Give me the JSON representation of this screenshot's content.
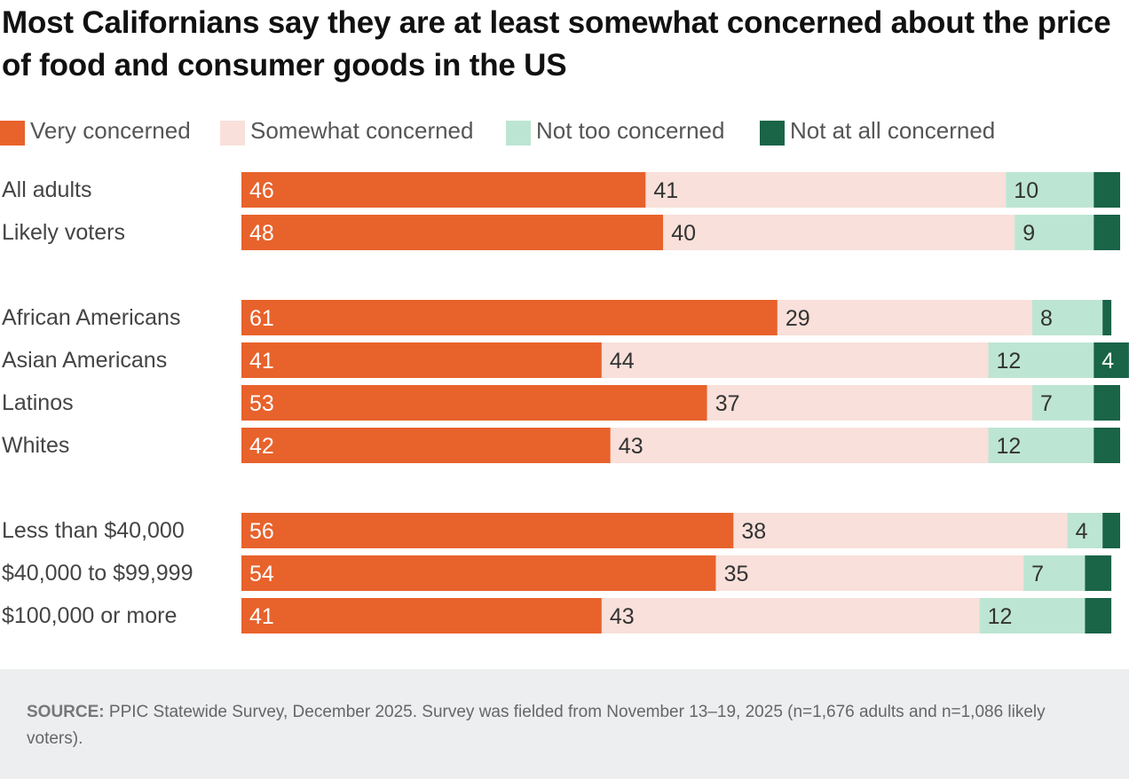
{
  "title": "Most Californians say they are at least somewhat concerned about the price of food and consumer goods in the US",
  "source": {
    "label": "SOURCE:",
    "text": "PPIC Statewide Survey, December 2025. Survey was fielded from November 13–19, 2025 (n=1,676 adults and n=1,086 likely voters)."
  },
  "colors": {
    "very": "#e8622c",
    "somewhat": "#f9e0da",
    "not_too": "#bde5d3",
    "not_at_all": "#1a6448"
  },
  "chart_data": {
    "type": "bar",
    "orientation": "horizontal",
    "stacked": true,
    "title": "Most Californians say they are at least somewhat concerned about the price of food and consumer goods in the US",
    "xlim": [
      0,
      100
    ],
    "grid": false,
    "legend_position": "top",
    "categories": [
      "All adults",
      "Likely voters",
      "African Americans",
      "Asian Americans",
      "Latinos",
      "Whites",
      "Less than $40,000",
      "$40,000 to $99,999",
      "$100,000 or more"
    ],
    "groups": [
      [
        0,
        1
      ],
      [
        2,
        3,
        4,
        5
      ],
      [
        6,
        7,
        8
      ]
    ],
    "series": [
      {
        "name": "Very concerned",
        "color_key": "very",
        "values": [
          46,
          48,
          61,
          41,
          53,
          42,
          56,
          54,
          41
        ],
        "labels": [
          "46",
          "48",
          "61",
          "41",
          "53",
          "42",
          "56",
          "54",
          "41"
        ]
      },
      {
        "name": "Somewhat concerned",
        "color_key": "somewhat",
        "values": [
          41,
          40,
          29,
          44,
          37,
          43,
          38,
          35,
          43
        ],
        "labels": [
          "41",
          "40",
          "29",
          "44",
          "37",
          "43",
          "38",
          "35",
          "43"
        ]
      },
      {
        "name": "Not too concerned",
        "color_key": "not_too",
        "values": [
          10,
          9,
          8,
          12,
          7,
          12,
          4,
          7,
          12
        ],
        "labels": [
          "10",
          "9",
          "8",
          "12",
          "7",
          "12",
          "4",
          "7",
          "12"
        ]
      },
      {
        "name": "Not at all concerned",
        "color_key": "not_at_all",
        "values": [
          3,
          3,
          1,
          4,
          3,
          3,
          2,
          3,
          3
        ],
        "labels": [
          "",
          "",
          "",
          "4",
          "",
          "",
          "",
          "",
          ""
        ]
      }
    ]
  }
}
